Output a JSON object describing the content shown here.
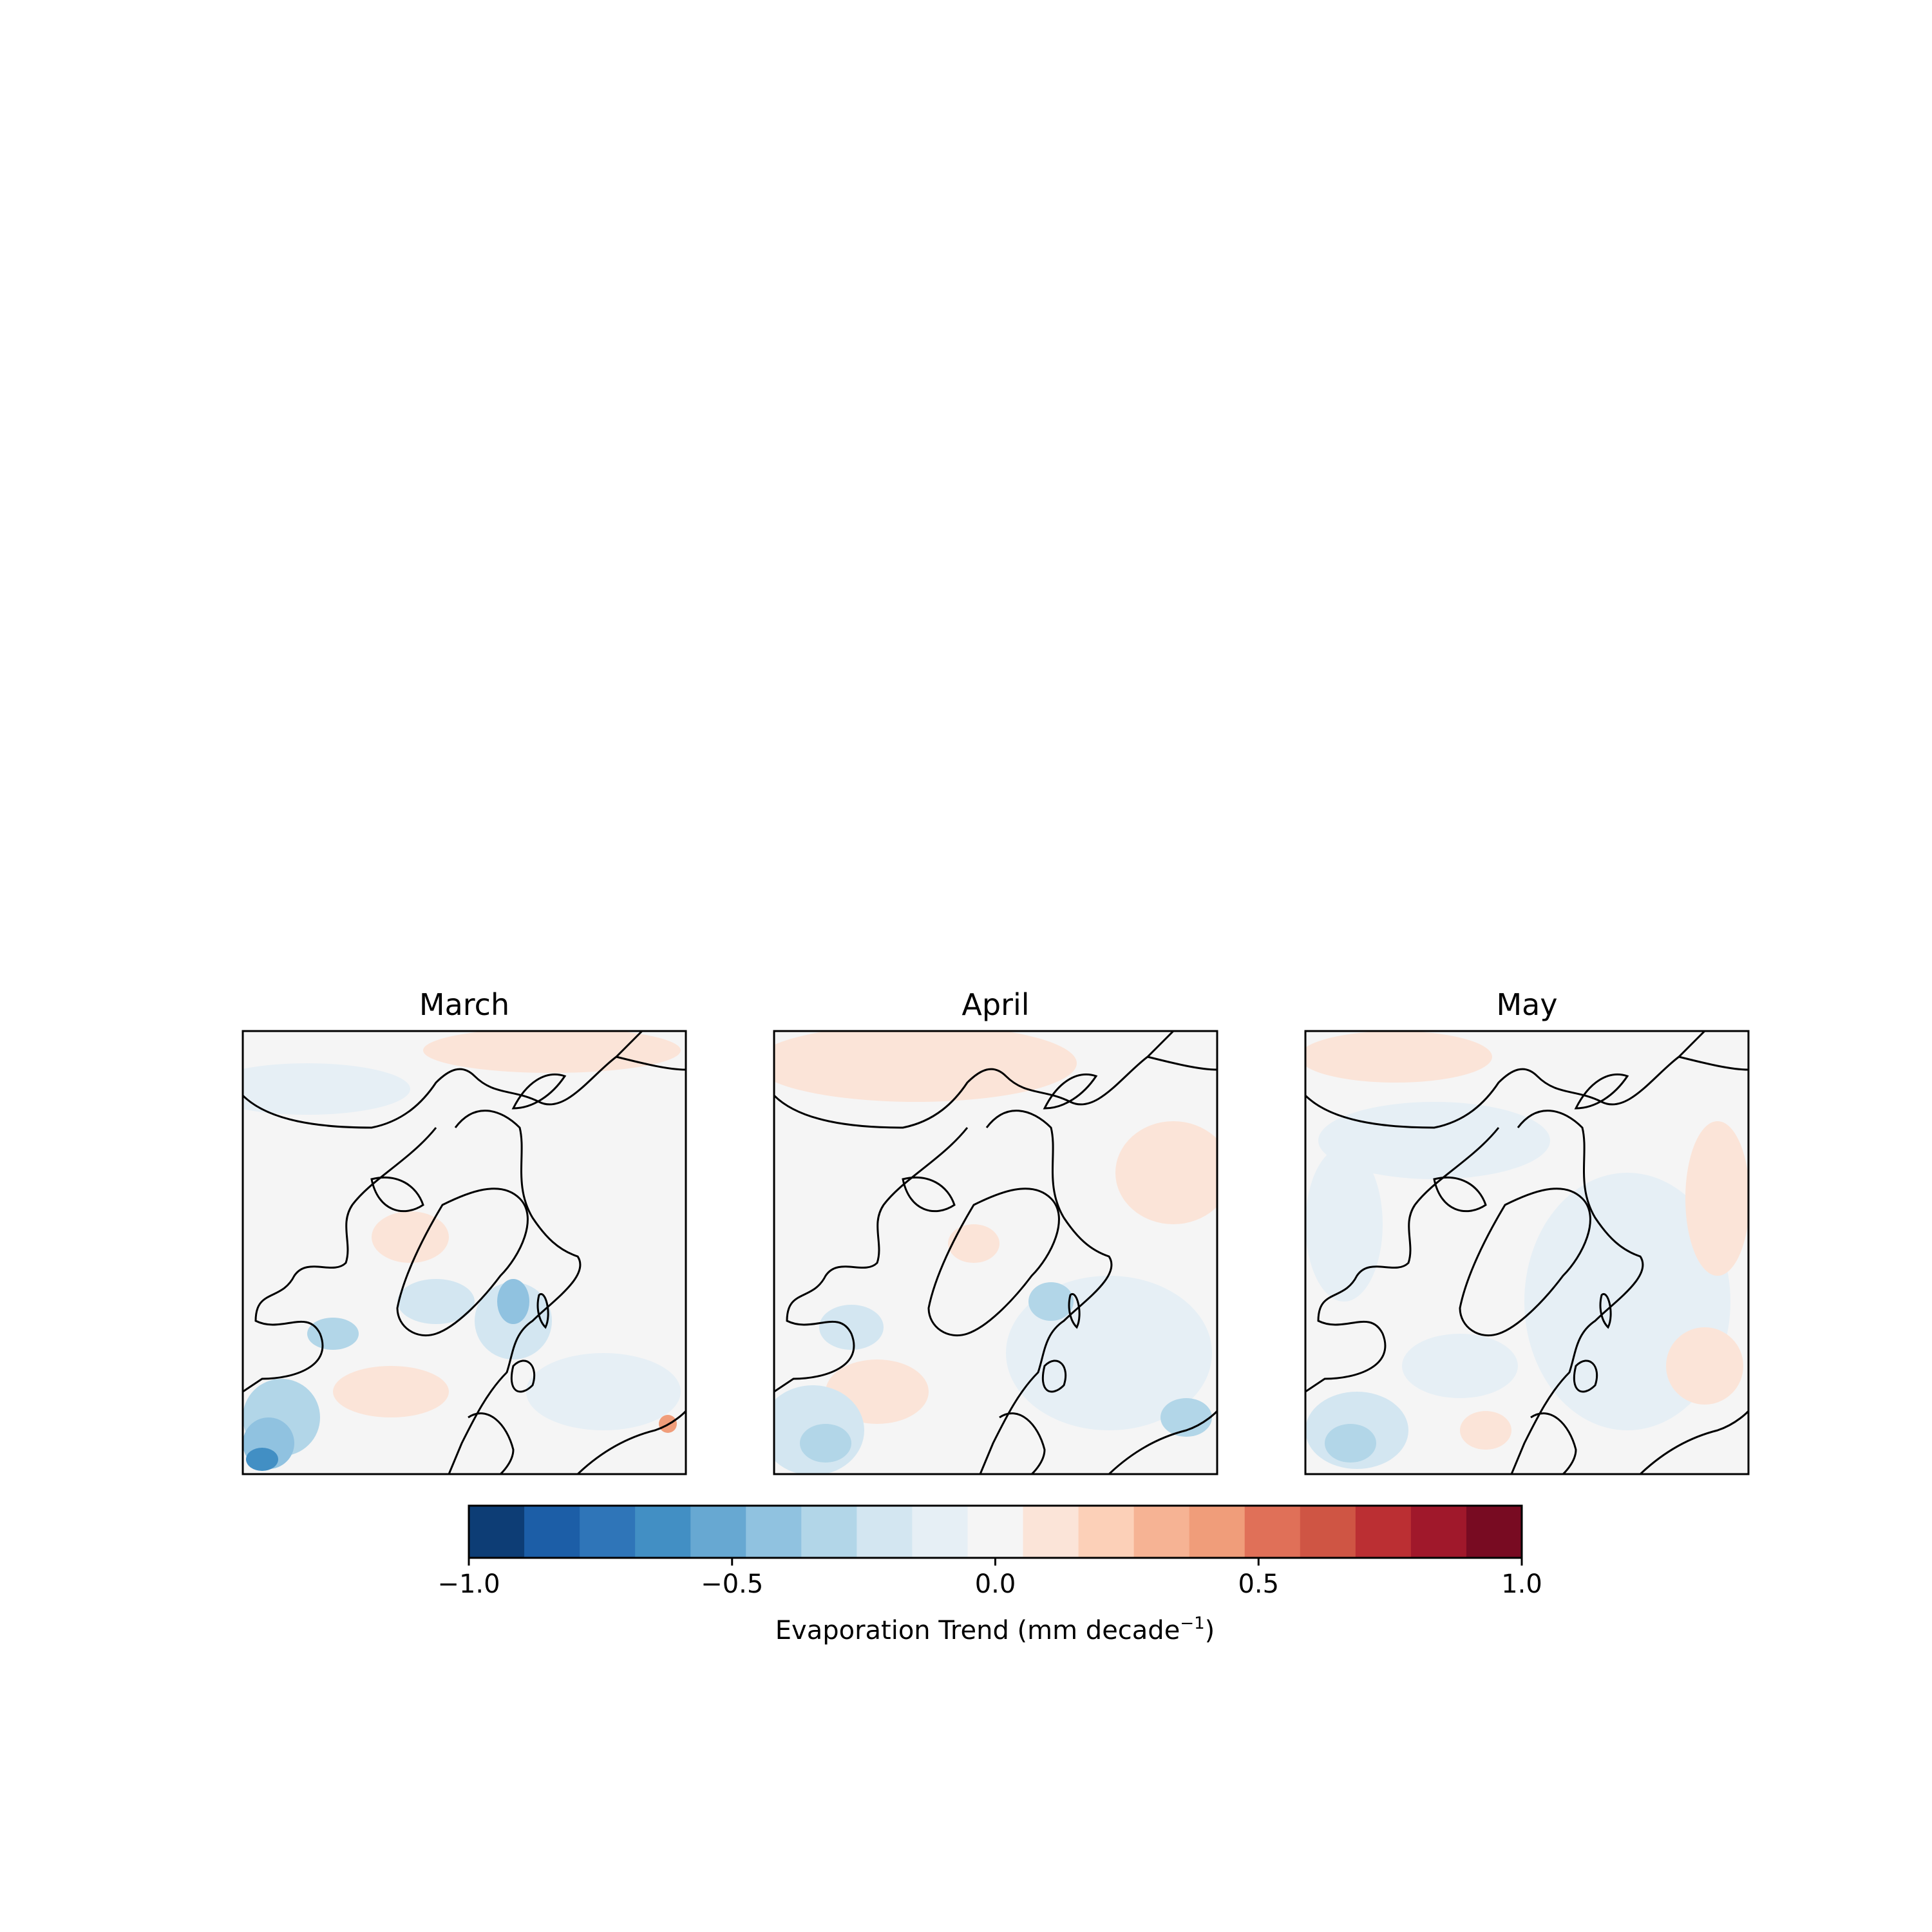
{
  "chart_data": {
    "type": "heatmap",
    "projection": "north polar stereographic",
    "panels": [
      {
        "title": "March"
      },
      {
        "title": "April"
      },
      {
        "title": "May"
      }
    ],
    "colorbar": {
      "label": "Evaporation Trend (mm decade",
      "label_superscript": "−1",
      "label_suffix": ")",
      "range": [
        -1.0,
        1.0
      ],
      "ticks": [
        "−1.0",
        "−0.5",
        "0.0",
        "0.5",
        "1.0"
      ],
      "tick_values": [
        -1.0,
        -0.5,
        0.0,
        0.5,
        1.0
      ],
      "levels": 19,
      "colors": [
        "#0d3d75",
        "#1c5ea7",
        "#2f75b8",
        "#428fc4",
        "#67a8d2",
        "#90c2e0",
        "#b2d6e8",
        "#d3e6f1",
        "#e6eff5",
        "#f5f5f5",
        "#fbe4d8",
        "#fcd0b8",
        "#f6b394",
        "#f09d7a",
        "#e07058",
        "#cf5544",
        "#bb2f33",
        "#a0182b",
        "#780b22"
      ]
    },
    "colormap": "RdBu_r",
    "grid": false
  }
}
